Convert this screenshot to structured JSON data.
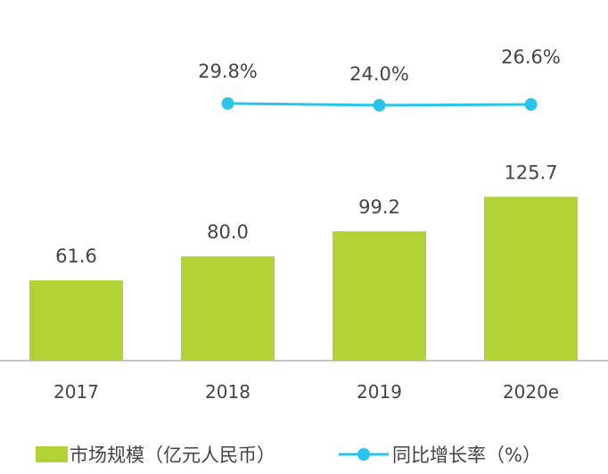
{
  "chart_data": {
    "type": "bar+line",
    "categories": [
      "2017",
      "2018",
      "2019",
      "2020e"
    ],
    "series": [
      {
        "name": "市场规模（亿元人民币）",
        "type": "bar",
        "values": [
          61.6,
          80.0,
          99.2,
          125.7
        ],
        "labels": [
          "61.6",
          "80.0",
          "99.2",
          "125.7"
        ],
        "color": "#b2d235"
      },
      {
        "name": "同比增长率（%）",
        "type": "line",
        "values": [
          null,
          29.8,
          24.0,
          26.6
        ],
        "labels": [
          "",
          "29.8%",
          "24.0%",
          "26.6%"
        ],
        "color": "#29c4ea"
      }
    ],
    "grid": false,
    "legend": "bottom"
  }
}
